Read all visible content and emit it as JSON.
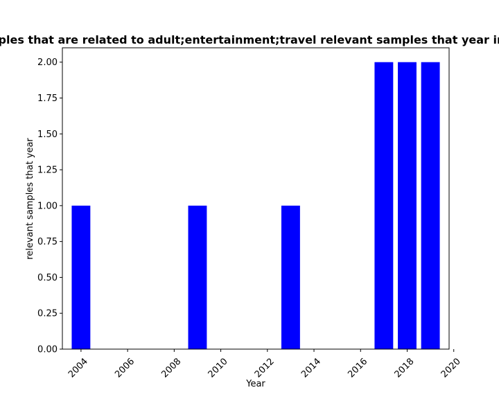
{
  "chart_data": {
    "type": "bar",
    "title": "Number of samples that are related to adult;entertainment;travel relevant samples that year in privacy policies",
    "xlabel": "Year",
    "ylabel": "relevant samples that year",
    "x": [
      2004,
      2009,
      2013,
      2017,
      2018,
      2019
    ],
    "values": [
      1,
      1,
      1,
      2,
      2,
      2
    ],
    "bar_color": "#0000ff",
    "xlim": [
      2003.2,
      2019.8
    ],
    "ylim": [
      0,
      2.1
    ],
    "x_ticks": [
      "2004",
      "2006",
      "2008",
      "2010",
      "2012",
      "2014",
      "2016",
      "2018",
      "2020"
    ],
    "y_ticks": [
      "0.00",
      "0.25",
      "0.50",
      "0.75",
      "1.00",
      "1.25",
      "1.50",
      "1.75",
      "2.00"
    ],
    "grid": false,
    "legend": "none"
  }
}
